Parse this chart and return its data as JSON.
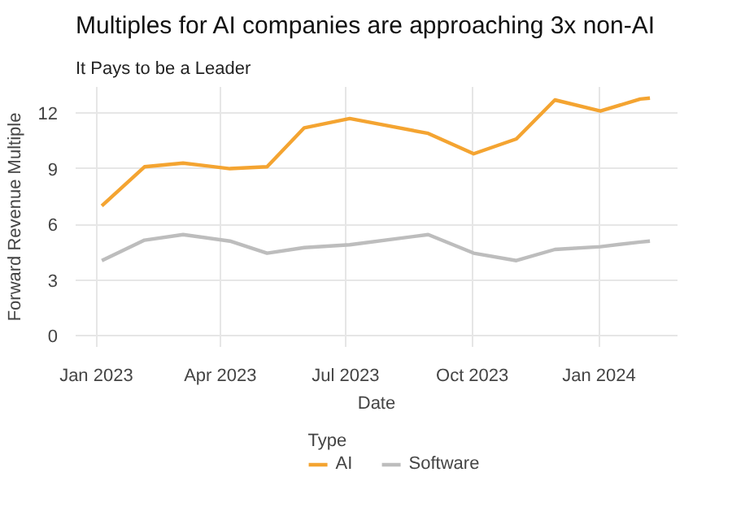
{
  "chart_data": {
    "type": "line",
    "title": "Multiples for AI companies are approaching 3x non-AI",
    "subtitle": "It Pays to be a Leader",
    "xlabel": "Date",
    "ylabel": "Forward Revenue Multiple",
    "legend_title": "Type",
    "x": [
      "2023-01-05",
      "2023-02-05",
      "2023-03-05",
      "2023-04-08",
      "2023-05-05",
      "2023-06-01",
      "2023-07-04",
      "2023-08-30",
      "2023-10-02",
      "2023-11-02",
      "2023-11-30",
      "2024-01-02",
      "2024-01-31",
      "2024-02-07"
    ],
    "series": [
      {
        "name": "AI",
        "color": "#f4a431",
        "values": [
          7.0,
          9.1,
          9.3,
          9.0,
          9.1,
          11.2,
          11.7,
          10.9,
          9.8,
          10.6,
          12.7,
          12.1,
          12.75,
          12.8
        ]
      },
      {
        "name": "Software",
        "color": "#bdbdbd",
        "values": [
          4.05,
          5.15,
          5.45,
          5.1,
          4.45,
          4.75,
          4.9,
          5.45,
          4.45,
          4.05,
          4.65,
          4.8,
          5.05,
          5.1
        ]
      }
    ],
    "xlim": [
      "2022-12-17",
      "2024-02-27"
    ],
    "xticks": [
      {
        "value": "2023-01-01",
        "label": "Jan 2023"
      },
      {
        "value": "2023-04-01",
        "label": "Apr 2023"
      },
      {
        "value": "2023-07-01",
        "label": "Jul 2023"
      },
      {
        "value": "2023-10-01",
        "label": "Oct 2023"
      },
      {
        "value": "2024-01-01",
        "label": "Jan 2024"
      }
    ],
    "ylim": [
      -0.6,
      13.4
    ],
    "yticks": [
      0,
      3,
      6,
      9,
      12
    ],
    "grid": true,
    "legend": "bottom",
    "line_style": "solid"
  }
}
